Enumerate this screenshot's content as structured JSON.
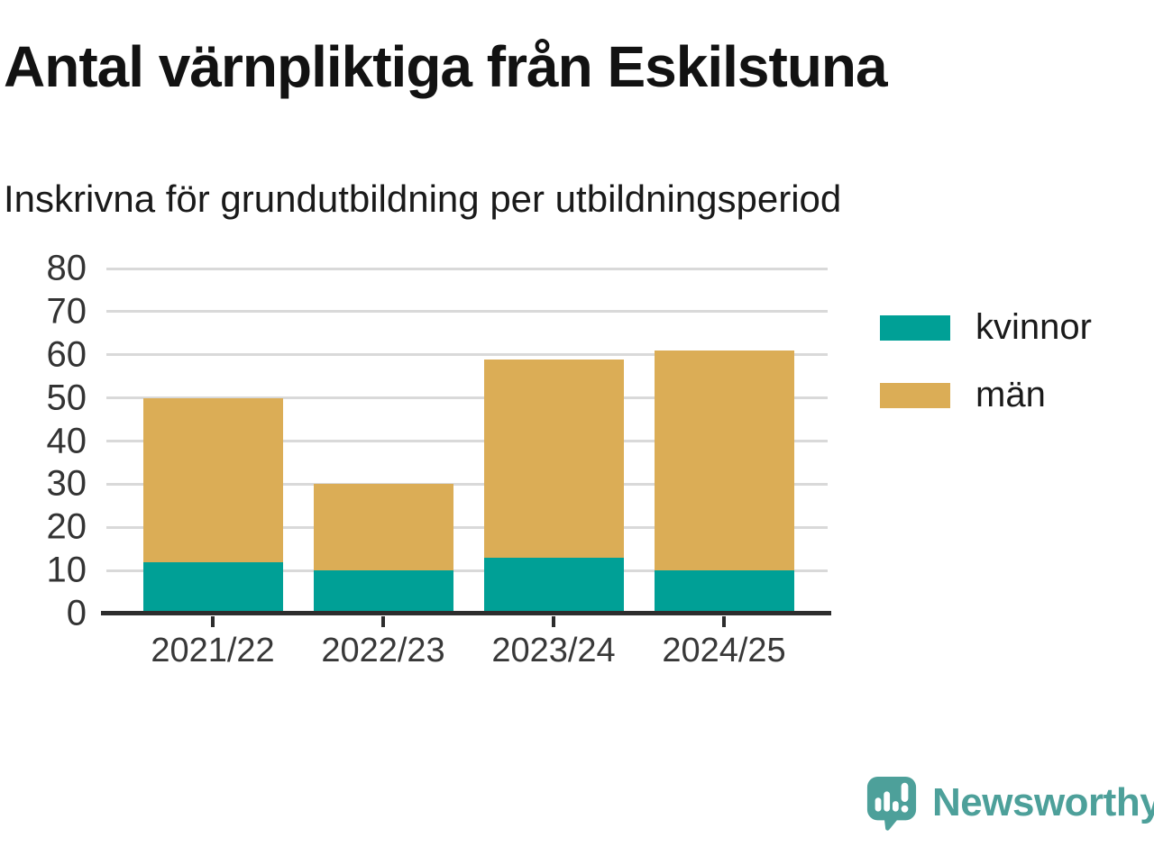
{
  "header": {
    "title": "Antal värnpliktiga från Eskilstuna",
    "subtitle": "Inskrivna för grundutbildning per utbildningsperiod"
  },
  "chart_data": {
    "type": "bar",
    "stacked": true,
    "title": "Antal värnpliktiga från Eskilstuna",
    "subtitle": "Inskrivna för grundutbildning per utbildningsperiod",
    "categories": [
      "2021/22",
      "2022/23",
      "2023/24",
      "2024/25"
    ],
    "series": [
      {
        "name": "kvinnor",
        "color": "#00a096",
        "values": [
          12,
          10,
          13,
          10
        ]
      },
      {
        "name": "män",
        "color": "#dbad56",
        "values": [
          38,
          20,
          46,
          51
        ]
      }
    ],
    "totals": [
      50,
      30,
      59,
      61
    ],
    "xlabel": "",
    "ylabel": "",
    "ylim": [
      0,
      80
    ],
    "yticks": [
      0,
      10,
      20,
      30,
      40,
      50,
      60,
      70,
      80
    ],
    "grid": "horizontal",
    "gridline_color": "#d9d9d9",
    "axis_color": "#2d2d2d",
    "legend_position": "right"
  },
  "brand": {
    "name": "Newsworthy",
    "color": "#4da09a",
    "icon": "newsworthy-speech-bubble-chart-icon"
  }
}
